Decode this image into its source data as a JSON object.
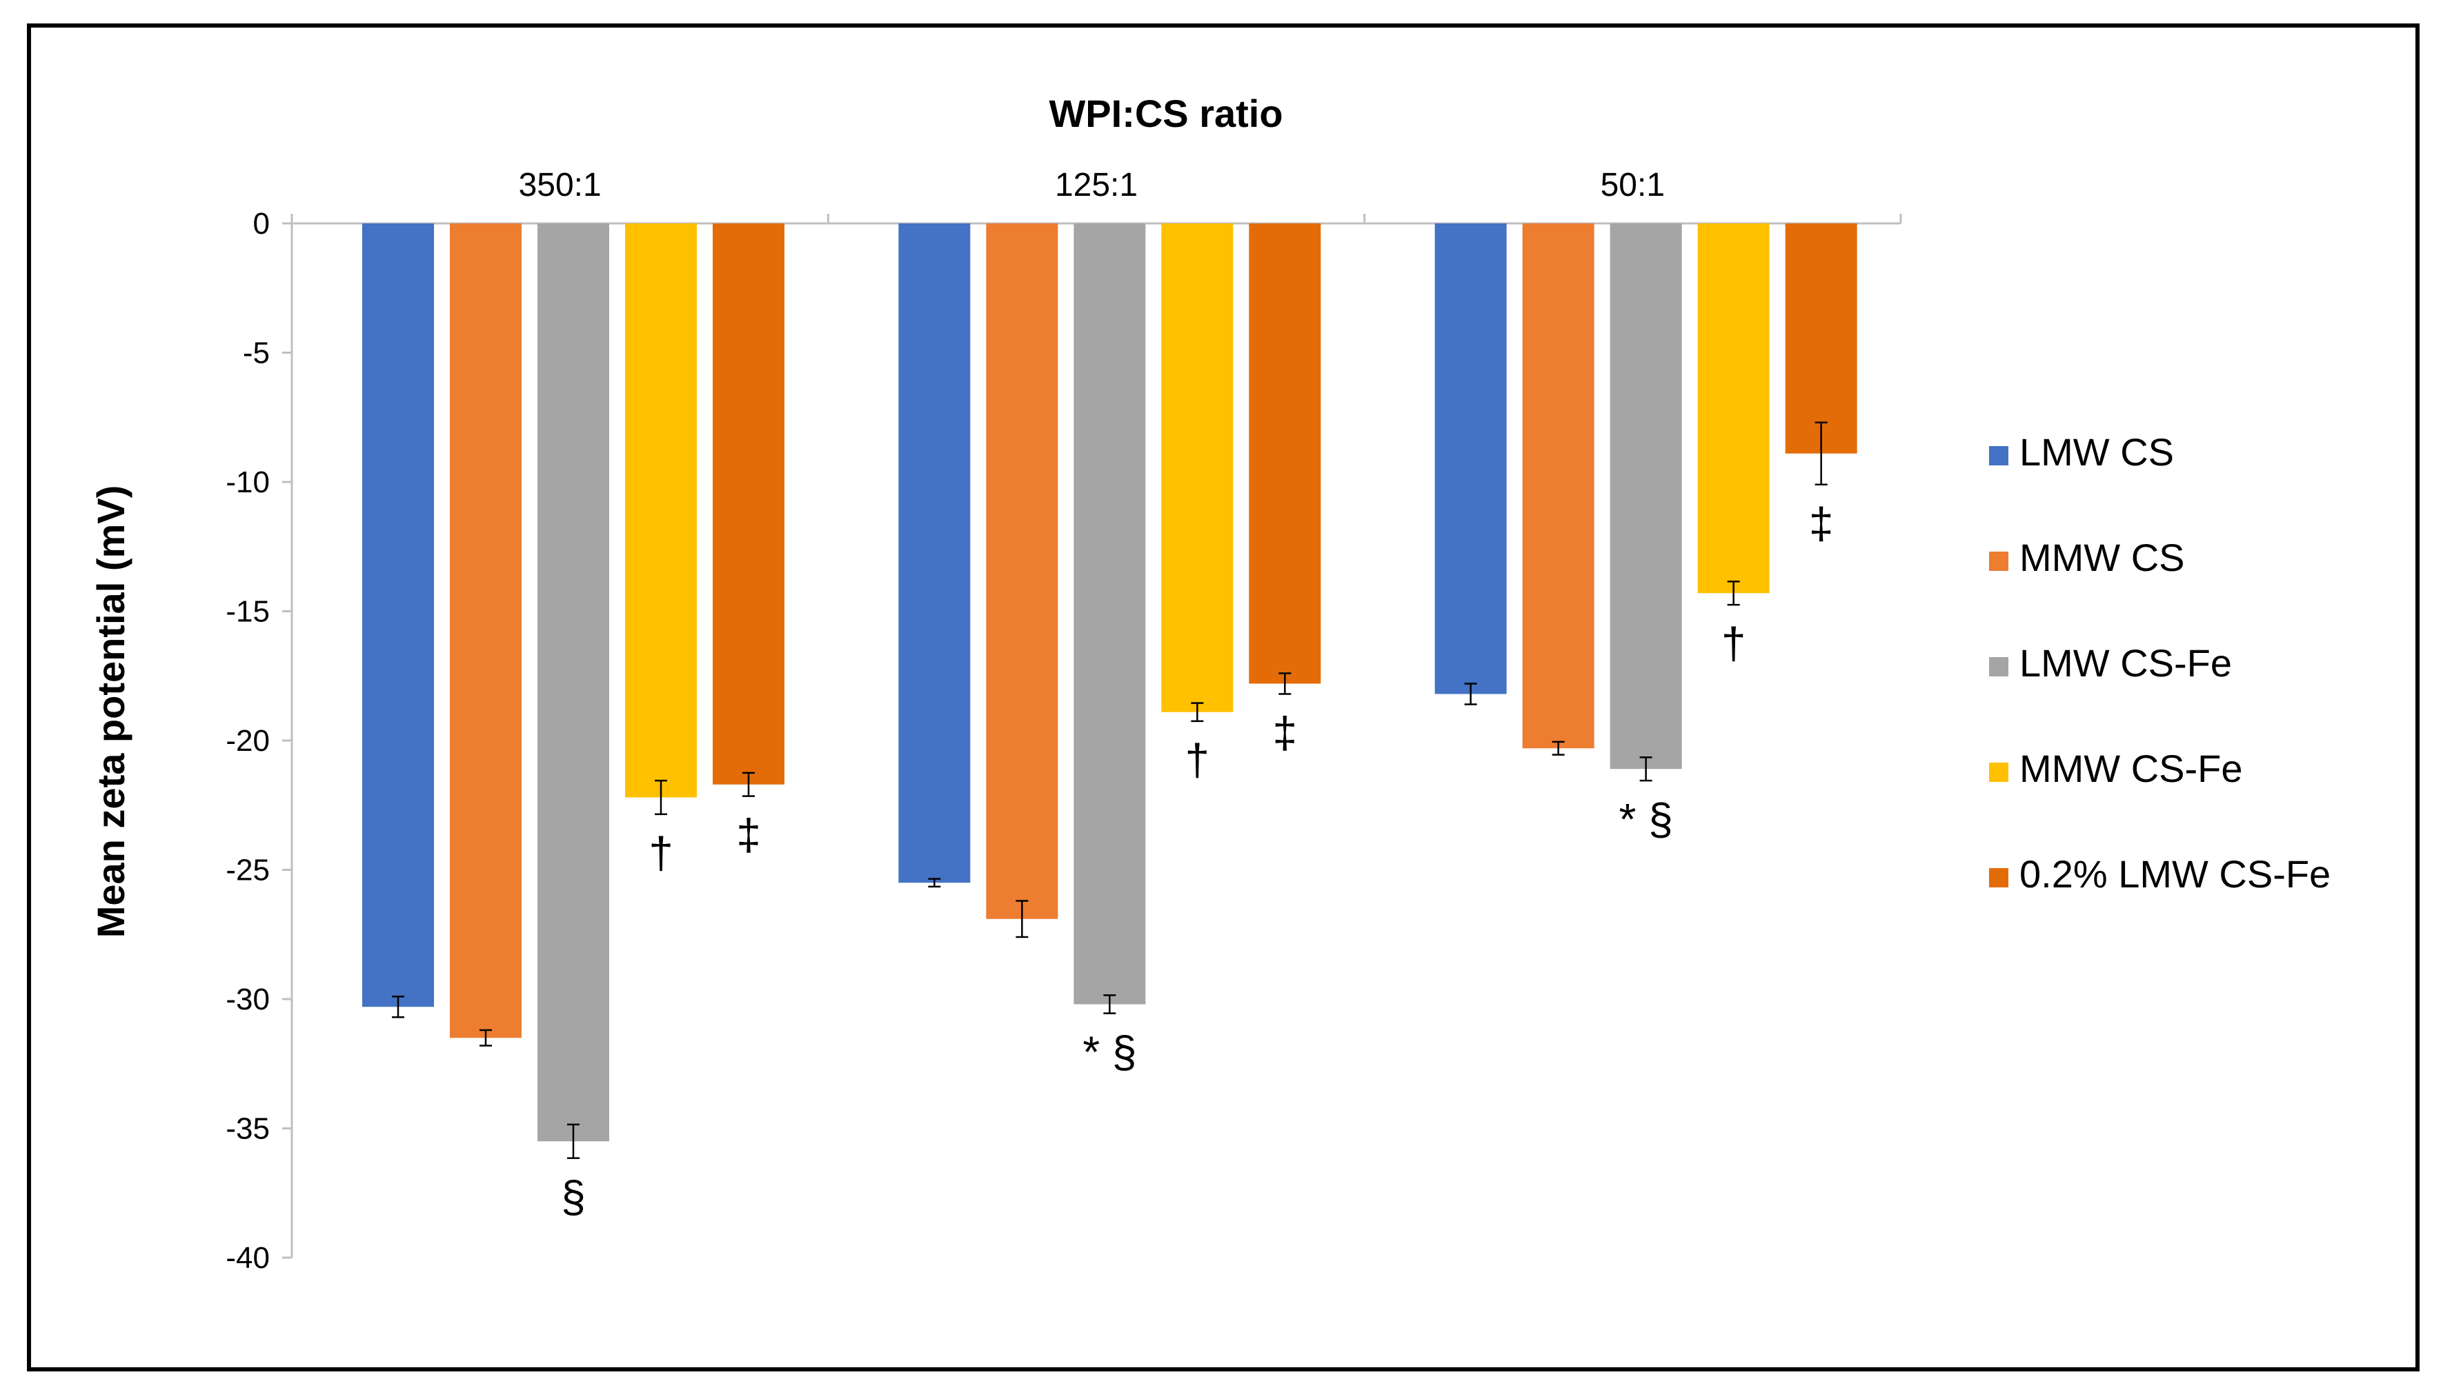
{
  "chart_data": {
    "type": "bar",
    "title": "WPI:CS ratio",
    "ylabel": "Mean zeta potential (mV)",
    "xlabel": "",
    "categories": [
      "350:1",
      "125:1",
      "50:1"
    ],
    "ylim": [
      -40,
      0
    ],
    "yticks": [
      0,
      -5,
      -10,
      -15,
      -20,
      -25,
      -30,
      -35,
      -40
    ],
    "legend_position": "right",
    "grid": false,
    "series": [
      {
        "name": "LMW CS",
        "color": "#4472C4",
        "values": [
          -30.3,
          -25.5,
          -18.2
        ],
        "errors": [
          0.4,
          0.15,
          0.4
        ],
        "marks": [
          "",
          "",
          ""
        ]
      },
      {
        "name": "MMW CS",
        "color": "#ED7D31",
        "values": [
          -31.5,
          -26.9,
          -20.3
        ],
        "errors": [
          0.3,
          0.7,
          0.25
        ],
        "marks": [
          "",
          "",
          ""
        ]
      },
      {
        "name": "LMW CS-Fe",
        "color": "#A5A5A5",
        "values": [
          -35.5,
          -30.2,
          -21.1
        ],
        "errors": [
          0.65,
          0.35,
          0.45
        ],
        "marks": [
          "§",
          "* §",
          "* §"
        ]
      },
      {
        "name": "MMW CS-Fe",
        "color": "#FFC000",
        "values": [
          -22.2,
          -18.9,
          -14.3
        ],
        "errors": [
          0.65,
          0.35,
          0.45
        ],
        "marks": [
          "†",
          "†",
          "†"
        ]
      },
      {
        "name": "0.2% LMW CS-Fe",
        "color": "#E36C09",
        "values": [
          -21.7,
          -17.8,
          -8.9
        ],
        "errors": [
          0.45,
          0.4,
          1.2
        ],
        "marks": [
          "‡",
          "‡",
          "‡"
        ]
      }
    ]
  }
}
